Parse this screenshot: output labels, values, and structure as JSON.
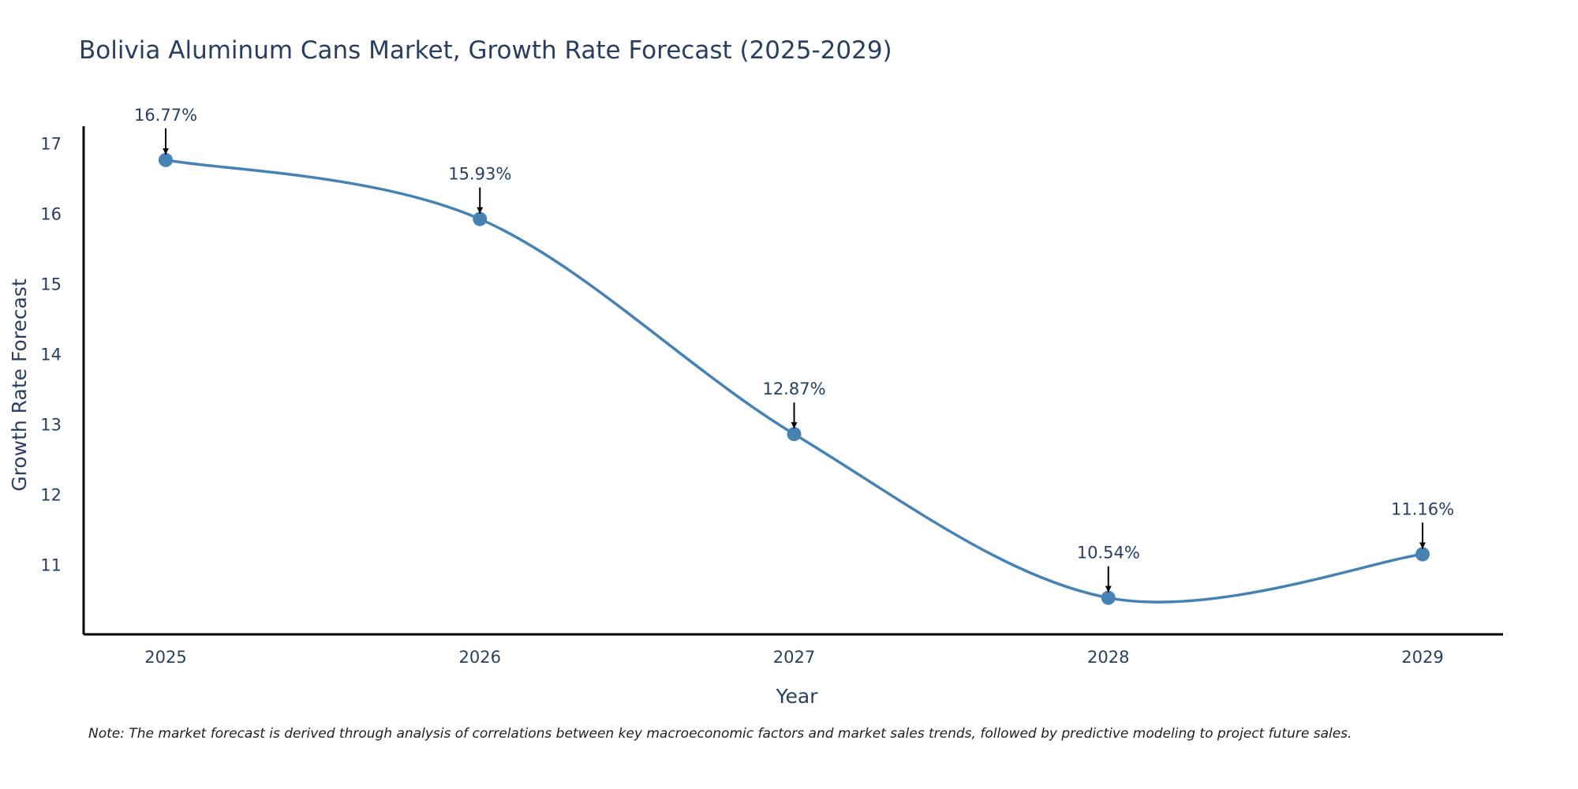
{
  "chart_data": {
    "type": "line",
    "title": "Bolivia Aluminum Cans Market, Growth Rate Forecast (2025-2029)",
    "xlabel": "Year",
    "ylabel": "Growth Rate Forecast",
    "categories": [
      "2025",
      "2026",
      "2027",
      "2028",
      "2029"
    ],
    "values": [
      16.77,
      15.93,
      12.87,
      10.54,
      11.16
    ],
    "data_labels": [
      "16.77%",
      "15.93%",
      "12.87%",
      "10.54%",
      "11.16%"
    ],
    "yticks": [
      11,
      12,
      13,
      14,
      15,
      16,
      17
    ],
    "ylim": [
      10.02,
      17.25
    ],
    "grid": false,
    "line_shape": "spline",
    "line_color": "#4682b4",
    "marker_color": "#4682b4",
    "arrow_color": "#000000",
    "note": "Note: The market forecast is derived through analysis of correlations between key macroeconomic factors and market sales trends, followed by predictive modeling to project future sales."
  }
}
